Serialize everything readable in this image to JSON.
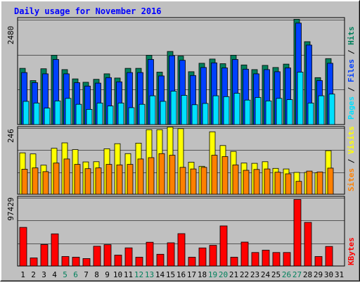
{
  "title": "Daily usage for November 2016",
  "colors": {
    "background": "#c0c0c0",
    "frame_light": "#ffffff",
    "frame_dark": "#808080",
    "title": "#0000ff",
    "hits": "#00805c",
    "files": "#0040ff",
    "pages": "#00e0ff",
    "visits": "#ffff00",
    "sites": "#ff8000",
    "kbytes": "#ff0000",
    "weekend_label": "#00805c",
    "weekday_label": "#000000"
  },
  "legends": {
    "top": [
      {
        "text": "Pages",
        "color": "#00e0ff"
      },
      {
        "text": " / ",
        "color": "#000000"
      },
      {
        "text": "Files",
        "color": "#0040ff"
      },
      {
        "text": " / ",
        "color": "#000000"
      },
      {
        "text": "Hits",
        "color": "#00805c"
      }
    ],
    "middle": [
      {
        "text": "Sites",
        "color": "#ff8000"
      },
      {
        "text": " / ",
        "color": "#000000"
      },
      {
        "text": "Visits",
        "color": "#ffff00"
      }
    ],
    "bottom": [
      {
        "text": "KBytes",
        "color": "#ff0000"
      }
    ]
  },
  "chart_data": {
    "type": "bar",
    "title": "Daily usage for November 2016",
    "categories": [
      "1",
      "2",
      "3",
      "4",
      "5",
      "6",
      "7",
      "8",
      "9",
      "10",
      "11",
      "12",
      "13",
      "14",
      "15",
      "16",
      "17",
      "18",
      "19",
      "20",
      "21",
      "22",
      "23",
      "24",
      "25",
      "26",
      "27",
      "28",
      "29",
      "30",
      "31"
    ],
    "weekend_days": [
      "5",
      "6",
      "12",
      "13",
      "19",
      "20",
      "26",
      "27"
    ],
    "grid": true,
    "panels": [
      {
        "id": "hits-files-pages",
        "ymax_label": "2480",
        "ymax": 2480,
        "series": [
          {
            "name": "Hits",
            "values": [
              1330,
              1040,
              1320,
              1640,
              1300,
              1080,
              1000,
              1070,
              1200,
              1100,
              1330,
              1330,
              1640,
              1240,
              1730,
              1620,
              1250,
              1450,
              1550,
              1440,
              1640,
              1410,
              1300,
              1400,
              1350,
              1430,
              2490,
              1960,
              1110,
              1560,
              0
            ]
          },
          {
            "name": "Files",
            "values": [
              1230,
              990,
              1200,
              1540,
              1200,
              990,
              910,
              980,
              1110,
              1010,
              1230,
              1230,
              1540,
              1150,
              1630,
              1520,
              1160,
              1350,
              1460,
              1340,
              1540,
              1310,
              1200,
              1300,
              1250,
              1340,
              2400,
              1880,
              1040,
              1450,
              0
            ]
          },
          {
            "name": "Pages",
            "values": [
              550,
              510,
              390,
              560,
              620,
              480,
              360,
              510,
              440,
              510,
              400,
              480,
              680,
              550,
              790,
              690,
              470,
              500,
              680,
              660,
              740,
              580,
              640,
              560,
              620,
              590,
              1240,
              510,
              680,
              720,
              0
            ]
          }
        ]
      },
      {
        "id": "visits-sites",
        "ymax_label": "246",
        "ymax": 246,
        "series": [
          {
            "name": "Visits",
            "values": [
              154,
              150,
              108,
              171,
              191,
              166,
              120,
              121,
              169,
              188,
              151,
              190,
              240,
              240,
              250,
              244,
              119,
              104,
              232,
              181,
              159,
              116,
              115,
              121,
              96,
              94,
              81,
              81,
              80,
              162,
              0
            ]
          },
          {
            "name": "Sites",
            "values": [
              93,
              98,
              84,
              116,
              131,
              111,
              95,
              98,
              111,
              109,
              111,
              131,
              136,
              151,
              145,
              100,
              94,
              100,
              145,
              140,
              109,
              89,
              92,
              94,
              82,
              76,
              48,
              86,
              83,
              97,
              0
            ]
          }
        ]
      },
      {
        "id": "kbytes",
        "ymax_label": "97429",
        "ymax": 97429,
        "series": [
          {
            "name": "KBytes",
            "values": [
              55100,
              11600,
              30600,
              45900,
              13600,
              12600,
              10600,
              28200,
              30400,
              15600,
              25900,
              12600,
              33900,
              16800,
              33100,
              46200,
              12600,
              25800,
              29500,
              57300,
              12600,
              34200,
              19300,
              22600,
              19300,
              19300,
              95000,
              62300,
              13600,
              27900,
              0
            ]
          }
        ]
      }
    ]
  }
}
